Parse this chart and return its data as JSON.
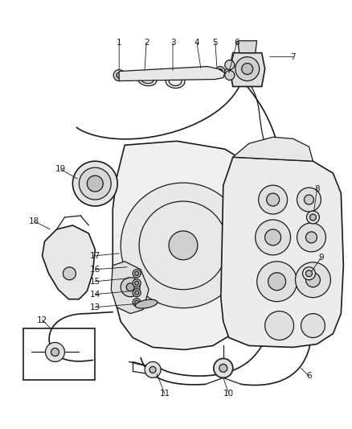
{
  "bg_color": "#ffffff",
  "line_color": "#1a1a1a",
  "label_color": "#1a1a1a",
  "fig_width": 4.38,
  "fig_height": 5.33,
  "dpi": 100
}
